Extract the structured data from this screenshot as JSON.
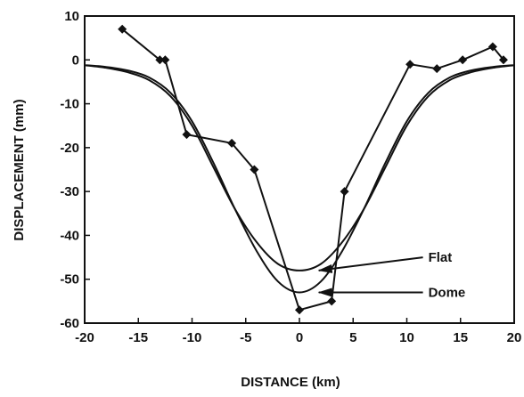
{
  "chart_data": {
    "type": "line",
    "xlabel": "DISTANCE   (km)",
    "ylabel": "DISPLACEMENT   (mm)",
    "xlim": [
      -20,
      20
    ],
    "ylim": [
      -60,
      10
    ],
    "x_ticks": [
      -20,
      -15,
      -10,
      -5,
      0,
      5,
      10,
      15,
      20
    ],
    "y_ticks": [
      10,
      0,
      -10,
      -20,
      -30,
      -40,
      -50,
      -60
    ],
    "grid": false,
    "series": [
      {
        "marker": "diamond",
        "x": [
          -16.5,
          -13,
          -12.5,
          -10.5,
          -6.3,
          -4.2,
          0,
          3,
          4.2,
          10.3,
          12.8,
          15.2,
          18,
          19
        ],
        "y": [
          7,
          0,
          0,
          -17,
          -19,
          -25,
          -57,
          -55,
          -30,
          -1,
          -2,
          0,
          3,
          0
        ]
      },
      {
        "x": [
          -20,
          -18,
          -16,
          -14,
          -12,
          -10,
          -8,
          -6,
          -4,
          -2,
          0,
          2,
          4,
          6,
          8,
          10,
          12,
          14,
          16,
          18,
          20
        ],
        "y": [
          -1.2,
          -1.8,
          -2.8,
          -4.6,
          -8.3,
          -15,
          -24.5,
          -34,
          -41.5,
          -46.5,
          -48,
          -46.5,
          -41.5,
          -34,
          -24.5,
          -15,
          -8.3,
          -4.6,
          -2.8,
          -1.8,
          -1.2
        ]
      },
      {
        "x": [
          -20,
          -18,
          -16,
          -14,
          -12,
          -10,
          -8,
          -6,
          -4,
          -2,
          0,
          2,
          4,
          6,
          8,
          10,
          12,
          14,
          16,
          18,
          20
        ],
        "y": [
          -1.2,
          -1.6,
          -2.4,
          -4,
          -7.5,
          -14,
          -23.5,
          -34,
          -43.5,
          -50.5,
          -53,
          -50.5,
          -43.5,
          -34,
          -23.5,
          -14,
          -7.5,
          -4,
          -2.4,
          -1.6,
          -1.2
        ]
      }
    ],
    "annotations": [
      {
        "text": "Flat",
        "x": 12,
        "y": -45,
        "target_x": 1.8,
        "target_y": -48
      },
      {
        "text": "Dome",
        "x": 12,
        "y": -53,
        "target_x": 1.8,
        "target_y": -53
      }
    ]
  }
}
